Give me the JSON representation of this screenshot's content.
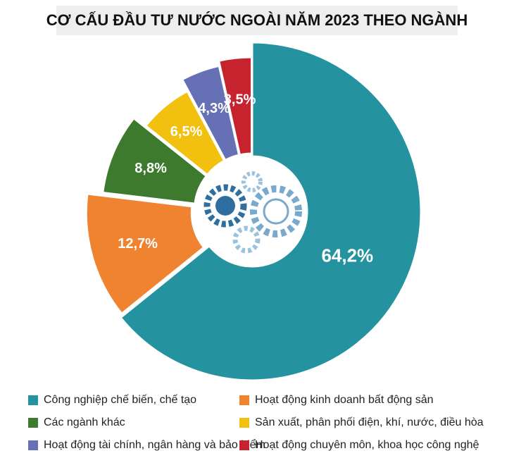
{
  "chart_data": {
    "type": "donut",
    "title": "CƠ CẤU ĐẦU TƯ NƯỚC NGOÀI NĂM 2023 THEO NGÀNH",
    "categories": [
      "Công nghiệp chế biến, chế tạo",
      "Hoạt động kinh doanh bất động sản",
      "Các ngành khác",
      "Sản xuất, phân phối điện, khí, nước, điều hòa",
      "Hoạt động tài chính, ngân hàng và bảo hiểm",
      "Hoạt động chuyên môn, khoa học công nghệ"
    ],
    "values": [
      64.2,
      12.7,
      8.8,
      6.5,
      4.3,
      3.5
    ],
    "value_labels": [
      "64,2%",
      "12,7%",
      "8,8%",
      "6,5%",
      "4,3%",
      "3,5%"
    ],
    "colors": [
      "#2592a0",
      "#ef8330",
      "#3d7a2e",
      "#f2c00e",
      "#6670b5",
      "#c6232f"
    ]
  }
}
